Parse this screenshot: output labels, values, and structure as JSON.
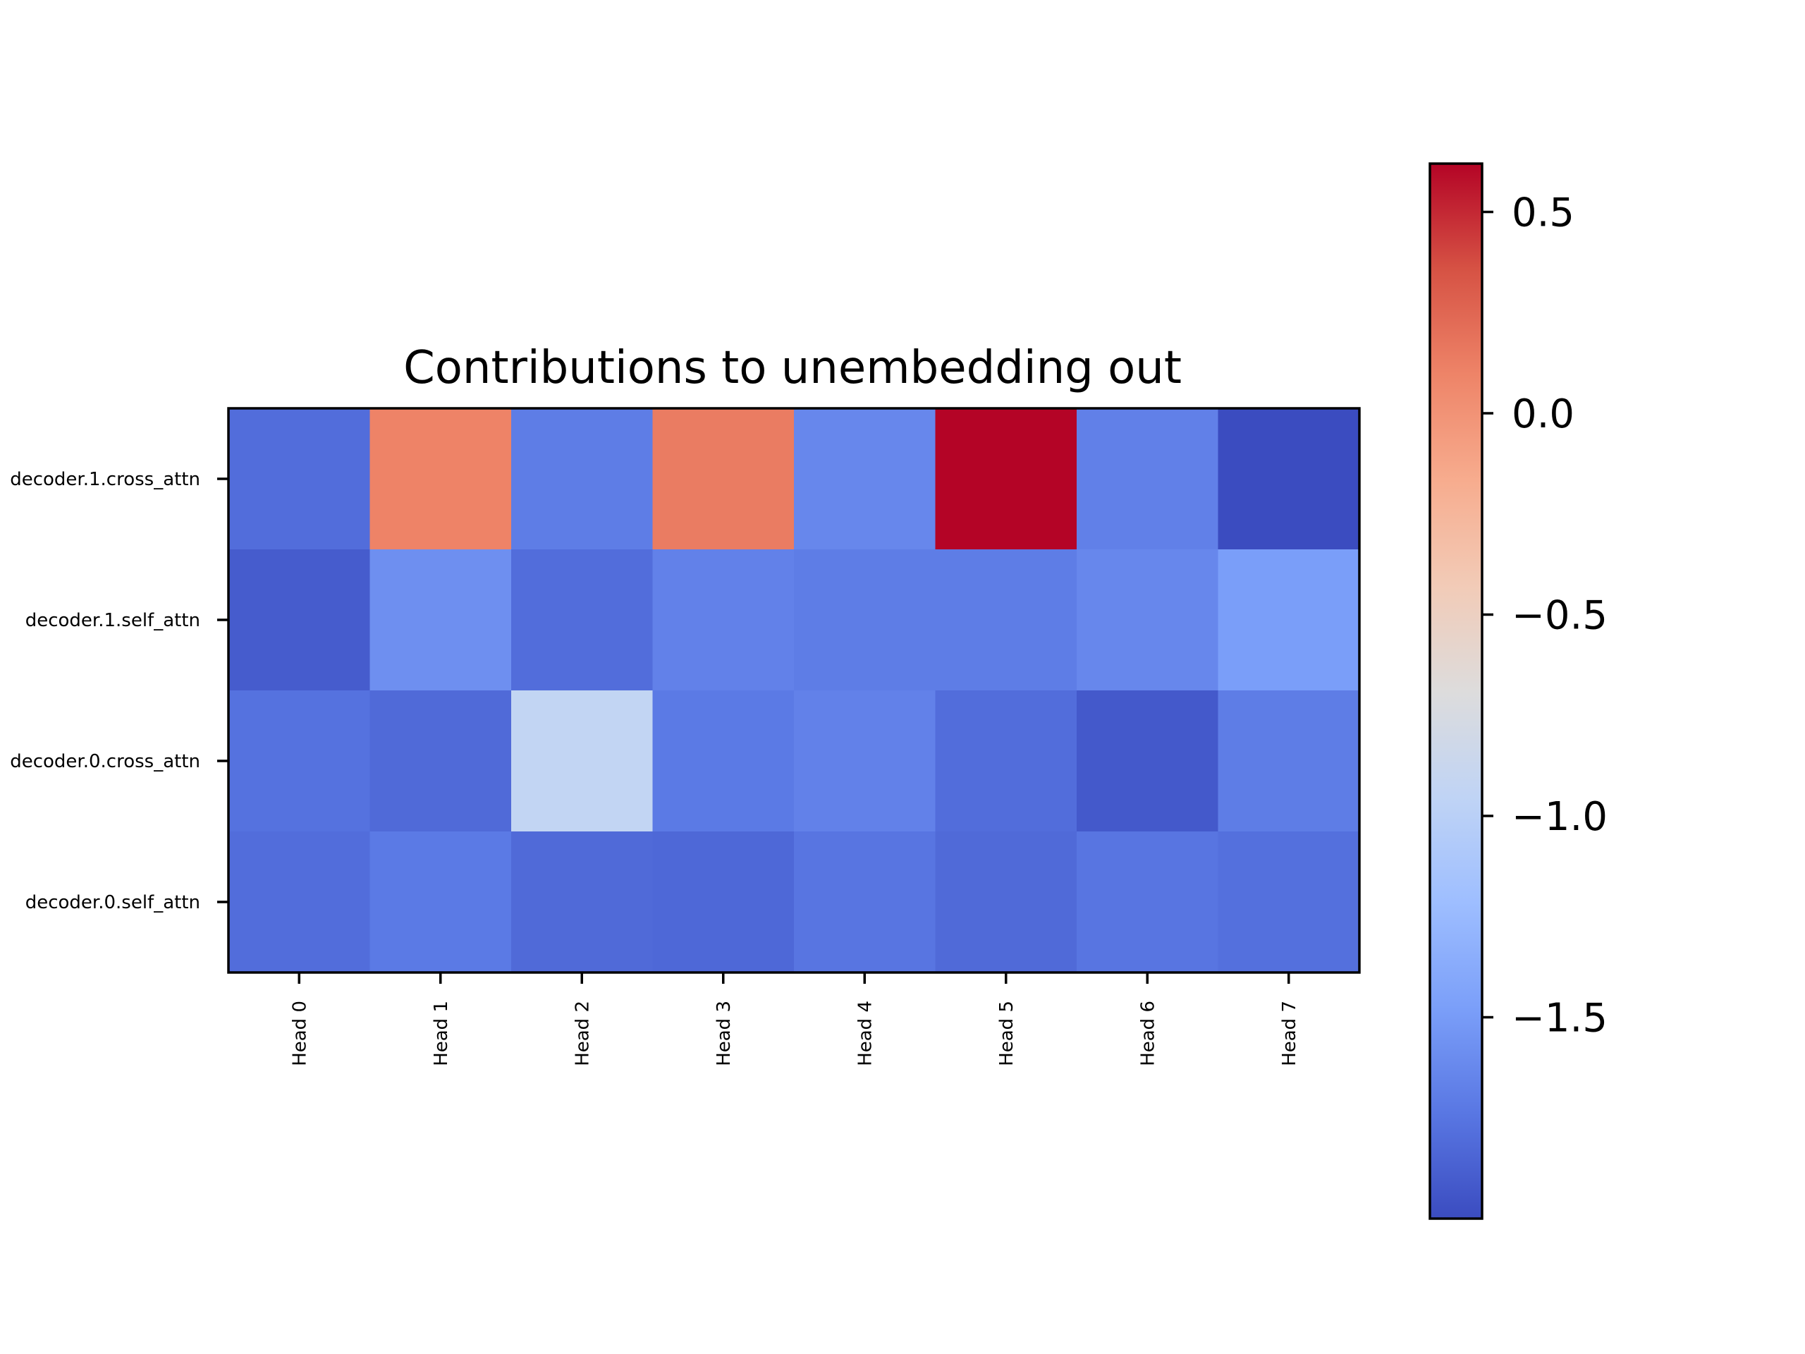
{
  "chart_data": {
    "type": "heatmap",
    "title": "Contributions to unembedding out",
    "x_categories": [
      "Head 0",
      "Head 1",
      "Head 2",
      "Head 3",
      "Head 4",
      "Head 5",
      "Head 6",
      "Head 7"
    ],
    "y_categories": [
      "decoder.1.cross_attn",
      "decoder.1.self_attn",
      "decoder.0.cross_attn",
      "decoder.0.self_attn"
    ],
    "values": [
      [
        -1.8,
        0.1,
        -1.7,
        0.14,
        -1.63,
        0.62,
        -1.68,
        -2.0
      ],
      [
        -1.9,
        -1.58,
        -1.8,
        -1.67,
        -1.7,
        -1.7,
        -1.63,
        -1.48
      ],
      [
        -1.77,
        -1.82,
        -0.93,
        -1.72,
        -1.67,
        -1.8,
        -1.92,
        -1.7
      ],
      [
        -1.8,
        -1.72,
        -1.82,
        -1.83,
        -1.75,
        -1.82,
        -1.75,
        -1.78
      ]
    ],
    "colormap": "coolwarm",
    "vmin": -2.0,
    "vmax": 0.62,
    "colorbar": {
      "ticks": [
        0.5,
        0.0,
        -0.5,
        -1.0,
        -1.5
      ],
      "tick_labels": [
        "0.5",
        "0.0",
        "−0.5",
        "−1.0",
        "−1.5"
      ]
    },
    "xlabel": "",
    "ylabel": "",
    "grid": false,
    "legend": "none"
  },
  "colors": {
    "cmap_stops": [
      "#3b4cc0",
      "#5977e3",
      "#7b9ff9",
      "#9ebeff",
      "#c0d4f5",
      "#dddcdc",
      "#f2cbb7",
      "#f7ac8e",
      "#ee8468",
      "#d65244",
      "#b40426"
    ],
    "axis": "#000000",
    "text": "#000000"
  }
}
